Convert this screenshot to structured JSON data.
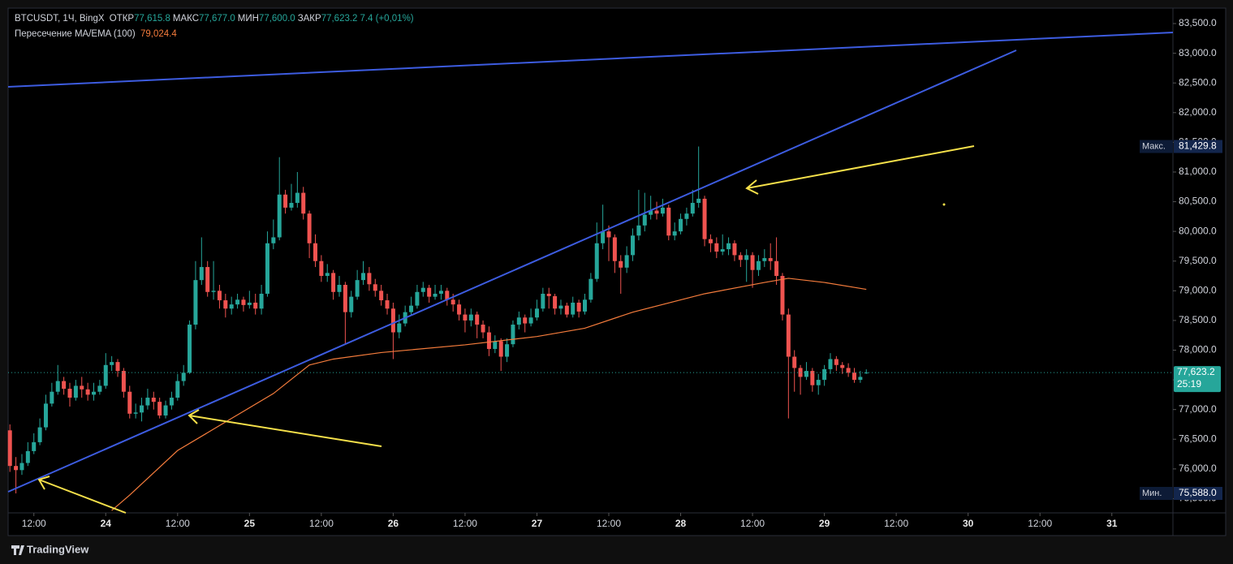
{
  "chart_data": {
    "type": "candlestick",
    "title": "BTCUSDT, 1Ч, BingX",
    "legend_fields": [
      {
        "name": "ОТКР",
        "value": 77615.8,
        "label": "77,615.8"
      },
      {
        "name": "МАКС",
        "value": 77677.0,
        "label": "77,677.0"
      },
      {
        "name": "МИН",
        "value": 77600.0,
        "label": "77,600.0"
      },
      {
        "name": "ЗАКР",
        "value": 77623.2,
        "label": "77,623.2"
      },
      {
        "name": "",
        "value": 7.4,
        "label": "7.4 (+0,01%)"
      }
    ],
    "up_color": "#26a69a",
    "down_color": "#ef5350",
    "x": [
      -16,
      -15,
      -14,
      -13,
      -12,
      -11,
      -10,
      -9,
      -8,
      -7,
      -6,
      -5,
      -4,
      -3,
      -2,
      -1,
      0,
      1,
      2,
      3,
      4,
      5,
      6,
      7,
      8,
      9,
      10,
      11,
      12,
      13,
      14,
      15,
      16,
      17,
      18,
      19,
      20,
      21,
      22,
      23,
      24,
      25,
      26,
      27,
      28,
      29,
      30,
      31,
      32,
      33,
      34,
      35,
      36,
      37,
      38,
      39,
      40,
      41,
      42,
      43,
      44,
      45,
      46,
      47,
      48,
      49,
      50,
      51,
      52,
      53,
      54,
      55,
      56,
      57,
      58,
      59,
      60,
      61,
      62,
      63,
      64,
      65,
      66,
      67,
      68,
      69,
      70,
      71,
      72,
      73,
      74,
      75,
      76,
      77,
      78,
      79,
      80,
      81,
      82,
      83,
      84,
      85,
      86,
      87,
      88,
      89,
      90,
      91,
      92,
      93,
      94,
      95,
      96,
      97,
      98,
      99,
      100,
      101,
      102,
      103,
      104,
      105,
      106,
      107,
      108,
      109,
      110,
      111,
      112,
      113,
      114,
      115,
      116,
      117,
      118,
      119,
      120,
      121,
      122,
      123,
      124,
      125,
      126,
      127
    ],
    "open": [
      76650,
      76050,
      75980,
      76100,
      76300,
      76450,
      76700,
      77100,
      77300,
      77480,
      77350,
      77200,
      77400,
      77340,
      77250,
      77300,
      77400,
      77750,
      77800,
      77650,
      77300,
      76930,
      76950,
      77070,
      77200,
      77130,
      76900,
      77070,
      77200,
      77480,
      77620,
      78430,
      79180,
      79400,
      78980,
      79000,
      78840,
      78700,
      78770,
      78850,
      78760,
      78800,
      78700,
      78950,
      79800,
      79900,
      80620,
      80400,
      80480,
      80650,
      80300,
      79800,
      79500,
      79250,
      79300,
      78980,
      79100,
      78640,
      78900,
      79180,
      79300,
      79110,
      79000,
      78840,
      78700,
      78300,
      78450,
      78640,
      78750,
      78980,
      79050,
      78900,
      78950,
      79000,
      78850,
      78770,
      78600,
      78500,
      78600,
      78430,
      78300,
      78020,
      78150,
      77890,
      78100,
      78430,
      78550,
      78450,
      78550,
      78700,
      78950,
      78910,
      78700,
      78750,
      78600,
      78800,
      78650,
      78850,
      79200,
      79800,
      80000,
      79900,
      79500,
      79390,
      79600,
      79930,
      80100,
      80280,
      80350,
      80300,
      80400,
      79930,
      80000,
      80210,
      80300,
      80480,
      80550,
      79870,
      79800,
      79660,
      79700,
      79800,
      79600,
      79520,
      79600,
      79350,
      79500,
      79550,
      79500,
      79250,
      78600,
      77890,
      77700,
      77550,
      77650,
      77410,
      77500,
      77680,
      77850,
      77750,
      77700,
      77620,
      77500,
      77615.8
    ],
    "high": [
      76750,
      76200,
      76250,
      76450,
      76600,
      76850,
      77250,
      77450,
      77750,
      77550,
      77450,
      77500,
      77550,
      77450,
      77450,
      77500,
      77950,
      77900,
      77850,
      77700,
      77400,
      77100,
      77200,
      77350,
      77300,
      77200,
      77150,
      77300,
      77600,
      77750,
      78500,
      79500,
      79900,
      79500,
      79500,
      79100,
      78950,
      78900,
      78950,
      78900,
      79000,
      78950,
      79100,
      80000,
      80200,
      81250,
      80700,
      80800,
      81000,
      80750,
      80350,
      79950,
      79600,
      79450,
      79350,
      79250,
      79150,
      79000,
      79350,
      79500,
      79400,
      79200,
      79100,
      78950,
      78800,
      78600,
      78750,
      78900,
      79100,
      79150,
      79100,
      79100,
      79100,
      79050,
      78950,
      78850,
      78700,
      78700,
      78650,
      78500,
      78400,
      78250,
      78200,
      78200,
      78500,
      78650,
      78600,
      78700,
      78850,
      79050,
      79050,
      78950,
      78850,
      78800,
      78900,
      78850,
      78950,
      79300,
      80150,
      80450,
      80100,
      79950,
      79600,
      79750,
      80050,
      80700,
      80650,
      80600,
      80500,
      80550,
      80450,
      80150,
      80300,
      80400,
      80700,
      81429.8,
      80600,
      79950,
      79900,
      79950,
      79900,
      79850,
      79650,
      79700,
      79650,
      79600,
      79700,
      79800,
      79900,
      79300,
      78700,
      78000,
      77750,
      77800,
      77700,
      77600,
      77750,
      77950,
      77900,
      77800,
      77780,
      77700,
      77650,
      77677
    ],
    "low": [
      75950,
      75588,
      75900,
      76050,
      76250,
      76400,
      76650,
      77050,
      77250,
      77250,
      77050,
      77150,
      77200,
      77150,
      77150,
      77250,
      77350,
      77650,
      77550,
      77200,
      76850,
      76850,
      76800,
      77000,
      77000,
      76850,
      76850,
      77000,
      77150,
      77400,
      77600,
      78350,
      79100,
      78900,
      78850,
      78700,
      78550,
      78600,
      78700,
      78650,
      78700,
      78600,
      78600,
      78900,
      79700,
      79850,
      80300,
      80350,
      80400,
      80200,
      79550,
      79400,
      79150,
      79150,
      78850,
      78900,
      78100,
      78550,
      78850,
      79100,
      79000,
      78900,
      78750,
      78600,
      77850,
      78200,
      78400,
      78600,
      78700,
      78900,
      78800,
      78850,
      78850,
      78750,
      78650,
      78500,
      78300,
      78400,
      78200,
      78200,
      77900,
      77950,
      77650,
      77800,
      78050,
      78350,
      78300,
      78400,
      78500,
      78650,
      78700,
      78600,
      78600,
      78550,
      78550,
      78550,
      78600,
      78800,
      79150,
      79700,
      79500,
      79300,
      78950,
      79300,
      79500,
      79850,
      80000,
      80200,
      80200,
      80250,
      79850,
      79850,
      79950,
      80100,
      80250,
      80400,
      79750,
      79650,
      79550,
      79600,
      79600,
      79500,
      79400,
      79150,
      79050,
      79250,
      79400,
      79350,
      79100,
      78500,
      76850,
      77300,
      77250,
      77500,
      77300,
      77250,
      77400,
      77600,
      77650,
      77600,
      77550,
      77450,
      77450,
      77600
    ],
    "close": [
      76050,
      75980,
      76100,
      76300,
      76450,
      76700,
      77100,
      77300,
      77480,
      77350,
      77200,
      77400,
      77340,
      77250,
      77300,
      77400,
      77750,
      77800,
      77650,
      77300,
      76930,
      76950,
      77070,
      77200,
      77130,
      76900,
      77070,
      77200,
      77480,
      77620,
      78430,
      79180,
      79400,
      78980,
      79000,
      78840,
      78700,
      78770,
      78850,
      78760,
      78800,
      78700,
      78950,
      79800,
      79900,
      80620,
      80400,
      80480,
      80650,
      80300,
      79800,
      79500,
      79250,
      79300,
      78980,
      79100,
      78640,
      78900,
      79180,
      79300,
      79110,
      79000,
      78840,
      78700,
      78300,
      78450,
      78640,
      78750,
      78980,
      79050,
      78900,
      78950,
      79000,
      78850,
      78770,
      78600,
      78500,
      78600,
      78430,
      78300,
      78020,
      78150,
      77890,
      78100,
      78430,
      78550,
      78450,
      78550,
      78700,
      78950,
      78910,
      78700,
      78750,
      78600,
      78800,
      78650,
      78850,
      79200,
      79800,
      80000,
      79900,
      79500,
      79390,
      79600,
      79930,
      80100,
      80280,
      80350,
      80300,
      80400,
      79930,
      80000,
      80210,
      80300,
      80480,
      80550,
      79870,
      79800,
      79660,
      79700,
      79800,
      79600,
      79520,
      79600,
      79350,
      79500,
      79550,
      79500,
      79250,
      78600,
      77890,
      77700,
      77550,
      77650,
      77410,
      77500,
      77680,
      77850,
      77750,
      77700,
      77620,
      77500,
      77550,
      77623.2
    ],
    "ema": {
      "name": "Пересечение MA/EMA (100)",
      "color": "#f57c3c",
      "last": {
        "value": 79024.4,
        "label": "79,024.4"
      },
      "x": [
        1,
        4,
        12,
        20,
        28,
        34,
        38,
        46,
        60,
        72,
        80,
        88,
        100,
        110,
        114,
        120,
        127
      ],
      "values": [
        75300,
        75560,
        76310,
        76790,
        77270,
        77750,
        77850,
        77960,
        78090,
        78230,
        78370,
        78640,
        78950,
        79140,
        79210,
        79140,
        79024.4
      ]
    },
    "xlim": [
      -16.3,
      178.2
    ],
    "xticks": [
      {
        "value": -12,
        "label": "12:00"
      },
      {
        "value": 0,
        "label": "24"
      },
      {
        "value": 12,
        "label": "12:00"
      },
      {
        "value": 24,
        "label": "25"
      },
      {
        "value": 36,
        "label": "12:00"
      },
      {
        "value": 48,
        "label": "26"
      },
      {
        "value": 60,
        "label": "12:00"
      },
      {
        "value": 72,
        "label": "27"
      },
      {
        "value": 84,
        "label": "12:00"
      },
      {
        "value": 96,
        "label": "28"
      },
      {
        "value": 108,
        "label": "12:00"
      },
      {
        "value": 120,
        "label": "29"
      },
      {
        "value": 132,
        "label": "12:00"
      },
      {
        "value": 144,
        "label": "30"
      },
      {
        "value": 156,
        "label": "12:00"
      },
      {
        "value": 168,
        "label": "31"
      }
    ],
    "ylim": [
      75260,
      83760
    ],
    "yticks": [
      {
        "value": 75500,
        "label": "75,500.0"
      },
      {
        "value": 76000,
        "label": "76,000.0"
      },
      {
        "value": 76500,
        "label": "76,500.0"
      },
      {
        "value": 77000,
        "label": "77,000.0"
      },
      {
        "value": 77500,
        "label": "77,500.0"
      },
      {
        "value": 78000,
        "label": "78,000.0"
      },
      {
        "value": 78500,
        "label": "78,500.0"
      },
      {
        "value": 79000,
        "label": "79,000.0"
      },
      {
        "value": 79500,
        "label": "79,500.0"
      },
      {
        "value": 80000,
        "label": "80,000.0"
      },
      {
        "value": 80500,
        "label": "80,500.0"
      },
      {
        "value": 81000,
        "label": "81,000.0"
      },
      {
        "value": 81500,
        "label": "81,500.0"
      },
      {
        "value": 82000,
        "label": "82,000.0"
      },
      {
        "value": 82500,
        "label": "82,500.0"
      },
      {
        "value": 83000,
        "label": "83,000.0"
      },
      {
        "value": 83500,
        "label": "83,500.0"
      }
    ],
    "grid": false,
    "price_tags": [
      {
        "name": "Макс.",
        "value": 81429.8,
        "label": "81,429.8"
      },
      {
        "name": "Мин.",
        "value": 75588.0,
        "label": "75,588.0"
      },
      {
        "value": 77623.2,
        "label": "77,623.2",
        "countdown": "25:19"
      }
    ]
  },
  "brand": "TradingView"
}
